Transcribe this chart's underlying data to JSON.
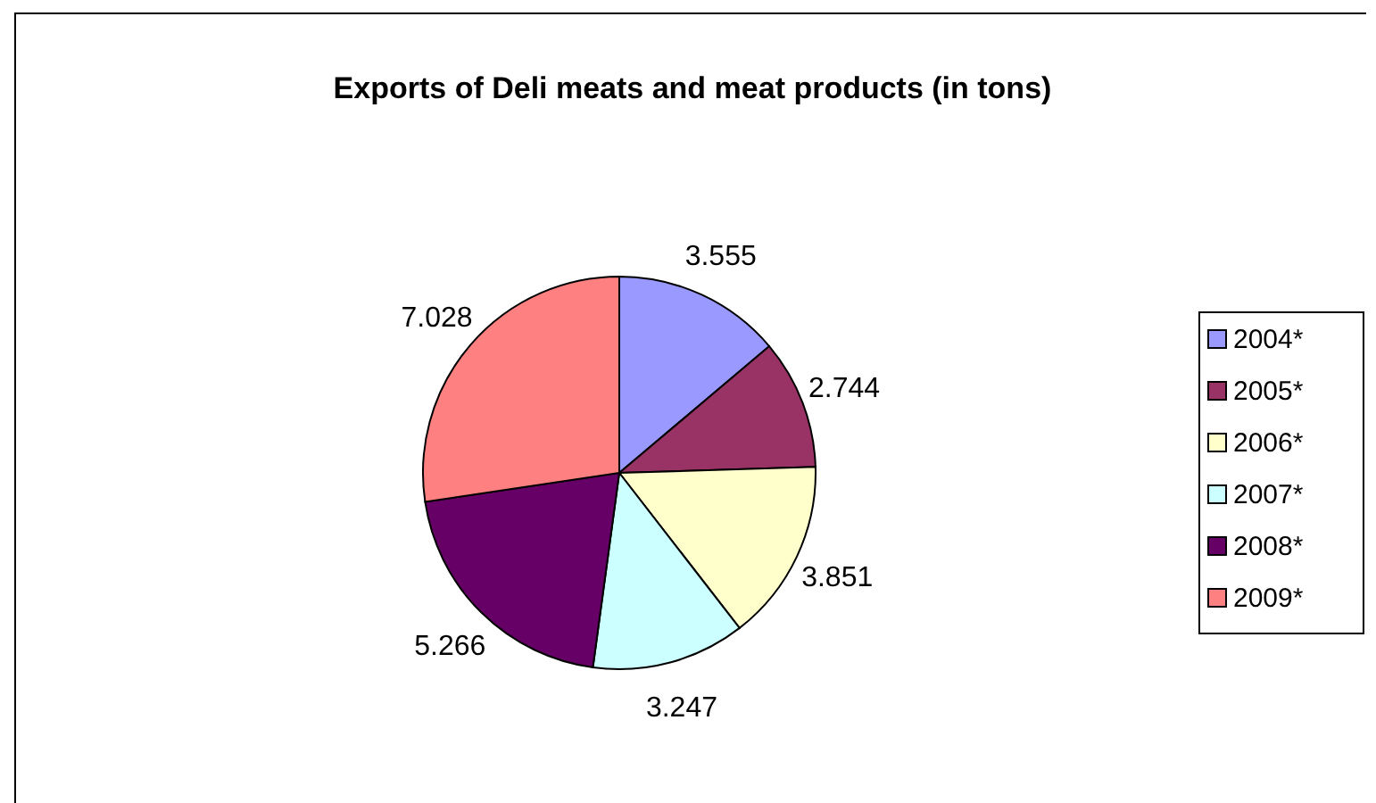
{
  "chart_data": {
    "type": "pie",
    "title": "Exports of Deli meats and meat products (in tons)",
    "categories": [
      "2004*",
      "2005*",
      "2006*",
      "2007*",
      "2008*",
      "2009*"
    ],
    "values": [
      3.555,
      2.744,
      3.851,
      3.247,
      5.266,
      7.028
    ],
    "colors": [
      "#9999ff",
      "#993366",
      "#ffffcc",
      "#ccffff",
      "#660066",
      "#ff8080"
    ],
    "data_labels": true,
    "legend": "right"
  }
}
